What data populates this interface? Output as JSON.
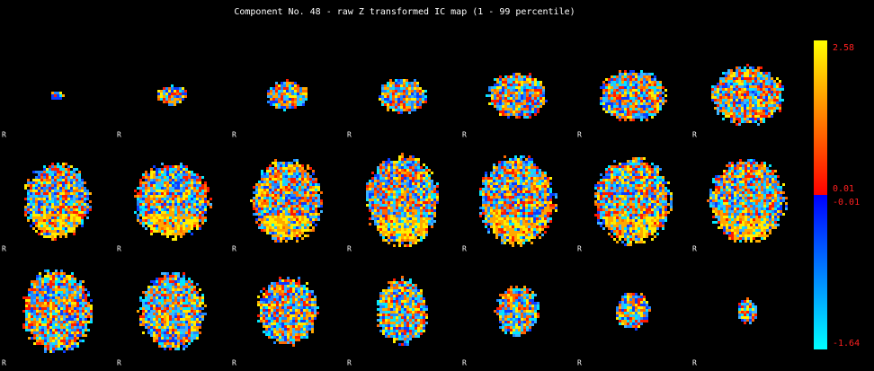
{
  "title": "Component No. 48 - raw Z transformed IC map (1 - 99 percentile)",
  "colorbar": {
    "labels": [
      "2.58",
      "0.01",
      "-0.01",
      "-1.64"
    ]
  },
  "slices": [
    {
      "label": "R"
    },
    {
      "label": "R"
    },
    {
      "label": "R"
    },
    {
      "label": "R"
    },
    {
      "label": "R"
    },
    {
      "label": "R"
    },
    {
      "label": "R"
    },
    {
      "label": "R"
    },
    {
      "label": "R"
    },
    {
      "label": "R"
    },
    {
      "label": "R"
    },
    {
      "label": "R"
    },
    {
      "label": "R"
    },
    {
      "label": "R"
    },
    {
      "label": "R"
    },
    {
      "label": "R"
    },
    {
      "label": "R"
    },
    {
      "label": "R"
    },
    {
      "label": "R"
    },
    {
      "label": "R"
    },
    {
      "label": "R"
    }
  ]
}
